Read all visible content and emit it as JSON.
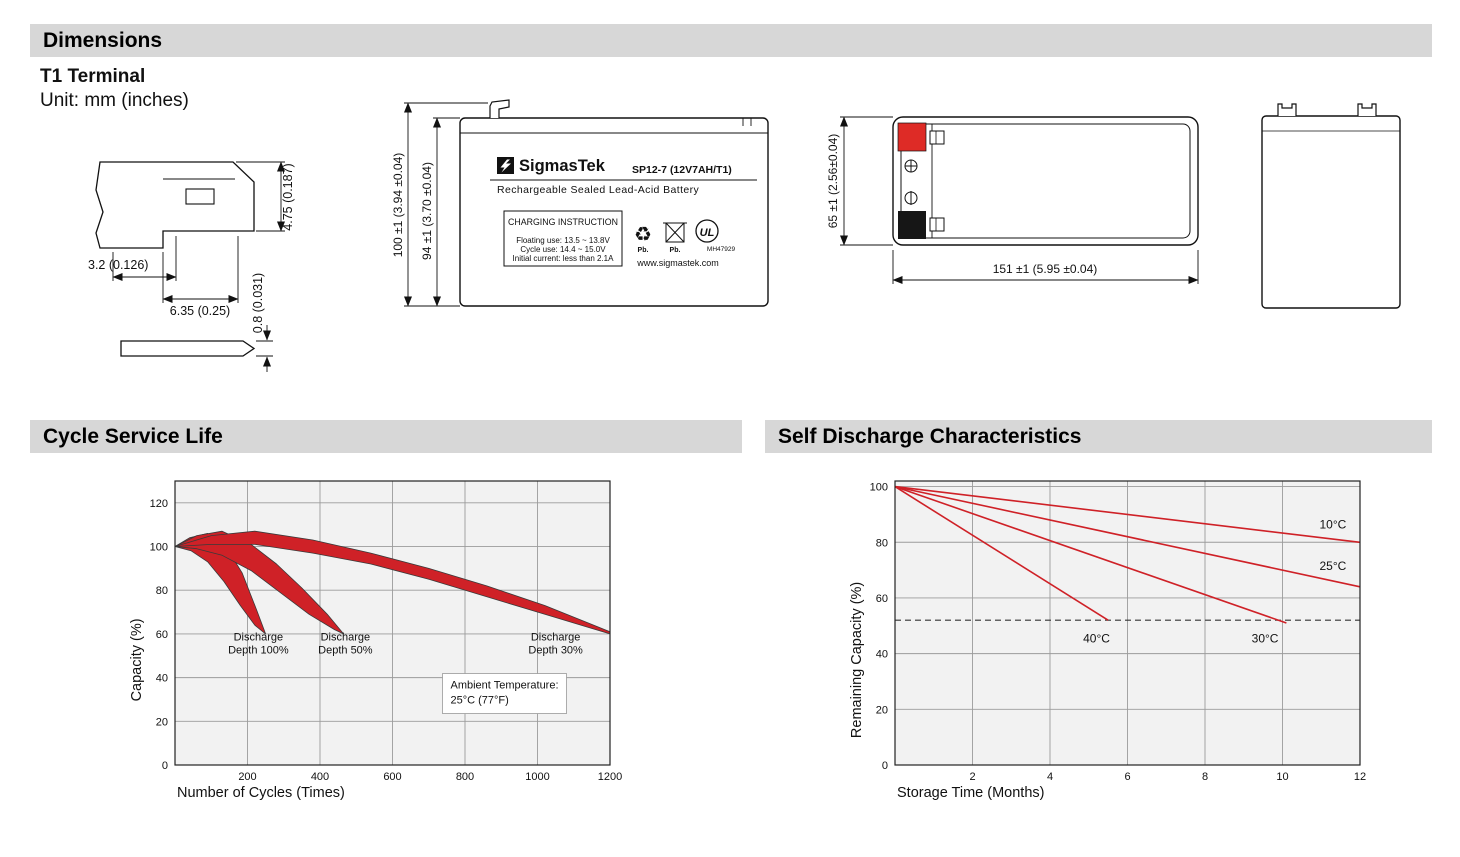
{
  "page": {
    "header_dimensions": "Dimensions",
    "header_cycle": "Cycle Service Life",
    "header_self_discharge": "Self Discharge Characteristics",
    "terminal_type": "T1 Terminal",
    "unit_note": "Unit: mm (inches)"
  },
  "icons": {
    "recycle": "♻",
    "ul_mark": "UL"
  },
  "terminal_drawing": {
    "dim_offset": "3.2 (0.126)",
    "dim_width": "6.35 (0.25)",
    "dim_height": "4.75 (0.187)",
    "dim_thickness": "0.8 (0.031)"
  },
  "front_view": {
    "brand": "SigmasTek",
    "model": "SP12-7 (12V7AH/T1)",
    "product_line": "Rechargeable Sealed Lead-Acid Battery",
    "charging": {
      "title": "CHARGING INSTRUCTION",
      "line1": "Floating use: 13.5 ~ 13.8V",
      "line2": "Cycle use: 14.4 ~ 15.0V",
      "line3": "Initial current: less than 2.1A"
    },
    "pb_recycle": "Pb.",
    "pb_bin": "Pb.",
    "ul_code": "MH47929",
    "website": "www.sigmastek.com",
    "dim_total_height": "100 ±1 (3.94 ±0.04)",
    "dim_body_height": "94 ±1 (3.70 ±0.04)"
  },
  "top_view": {
    "dim_width": "65 ±1 (2.56±0.04)",
    "dim_length": "151 ±1 (5.95 ±0.04)"
  },
  "chart_data": [
    {
      "type": "area",
      "title": "Cycle Service Life",
      "xlabel": "Number of Cycles (Times)",
      "ylabel": "Capacity (%)",
      "xlim": [
        0,
        1200
      ],
      "ylim": [
        0,
        130
      ],
      "xticks": [
        200,
        400,
        600,
        800,
        1000,
        1200
      ],
      "yticks": [
        0,
        20,
        40,
        60,
        80,
        100,
        120
      ],
      "grid": true,
      "band_color": "#cf2127",
      "bands": [
        {
          "name": "Discharge Depth 100%",
          "upper": [
            [
              0,
              100
            ],
            [
              40,
              104
            ],
            [
              90,
              106
            ],
            [
              140,
              100
            ],
            [
              185,
              88
            ],
            [
              225,
              71
            ],
            [
              250,
              60
            ]
          ],
          "lower": [
            [
              0,
              100
            ],
            [
              45,
              98
            ],
            [
              90,
              93
            ],
            [
              135,
              84
            ],
            [
              180,
              73
            ],
            [
              220,
              64
            ],
            [
              250,
              60
            ]
          ],
          "label": [
            "Discharge",
            "Depth 100%"
          ],
          "label_x": 230,
          "label_y": 57
        },
        {
          "name": "Discharge Depth 50%",
          "upper": [
            [
              0,
              100
            ],
            [
              60,
              105
            ],
            [
              130,
              107
            ],
            [
              210,
              101
            ],
            [
              280,
              92
            ],
            [
              350,
              81
            ],
            [
              420,
              69
            ],
            [
              465,
              60
            ]
          ],
          "lower": [
            [
              0,
              100
            ],
            [
              60,
              99
            ],
            [
              130,
              96
            ],
            [
              210,
              89
            ],
            [
              290,
              79
            ],
            [
              370,
              69
            ],
            [
              440,
              62
            ],
            [
              465,
              60
            ]
          ],
          "label": [
            "Discharge",
            "Depth 50%"
          ],
          "label_x": 470,
          "label_y": 57
        },
        {
          "name": "Discharge Depth 30%",
          "upper": [
            [
              0,
              100
            ],
            [
              100,
              105
            ],
            [
              220,
              107
            ],
            [
              380,
              103
            ],
            [
              540,
              97
            ],
            [
              700,
              90
            ],
            [
              860,
              82
            ],
            [
              1020,
              73
            ],
            [
              1140,
              65
            ],
            [
              1200,
              61
            ]
          ],
          "lower": [
            [
              0,
              100
            ],
            [
              100,
              101
            ],
            [
              220,
              101
            ],
            [
              380,
              97
            ],
            [
              540,
              92
            ],
            [
              700,
              85
            ],
            [
              860,
              77
            ],
            [
              1020,
              69
            ],
            [
              1140,
              63
            ],
            [
              1200,
              60
            ]
          ],
          "label": [
            "Discharge",
            "Depth 30%"
          ],
          "label_x": 1050,
          "label_y": 57
        }
      ],
      "annotation": {
        "lines": [
          "Ambient Temperature:",
          "25°C (77°F)"
        ],
        "x": 760,
        "y": 35
      }
    },
    {
      "type": "line",
      "title": "Self Discharge Characteristics",
      "xlabel": "Storage Time (Months)",
      "ylabel": "Remaining Capacity (%)",
      "xlim": [
        0,
        12
      ],
      "ylim": [
        0,
        102
      ],
      "xticks": [
        2,
        4,
        6,
        8,
        10,
        12
      ],
      "yticks": [
        0,
        20,
        40,
        60,
        80,
        100
      ],
      "grid": true,
      "line_color": "#cf2127",
      "series": [
        {
          "name": "10°C",
          "points": [
            [
              0,
              100
            ],
            [
              12,
              80
            ]
          ],
          "label_x": 11.3,
          "label_y": 85
        },
        {
          "name": "25°C",
          "points": [
            [
              0,
              100
            ],
            [
              12,
              64
            ]
          ],
          "label_x": 11.3,
          "label_y": 70
        },
        {
          "name": "30°C",
          "points": [
            [
              0,
              100
            ],
            [
              10.1,
              51
            ]
          ],
          "label_x": 9.55,
          "label_y": 44
        },
        {
          "name": "40°C",
          "points": [
            [
              0,
              100
            ],
            [
              5.5,
              52
            ]
          ],
          "label_x": 5.2,
          "label_y": 44
        }
      ],
      "dashed_line_y": 52
    }
  ]
}
